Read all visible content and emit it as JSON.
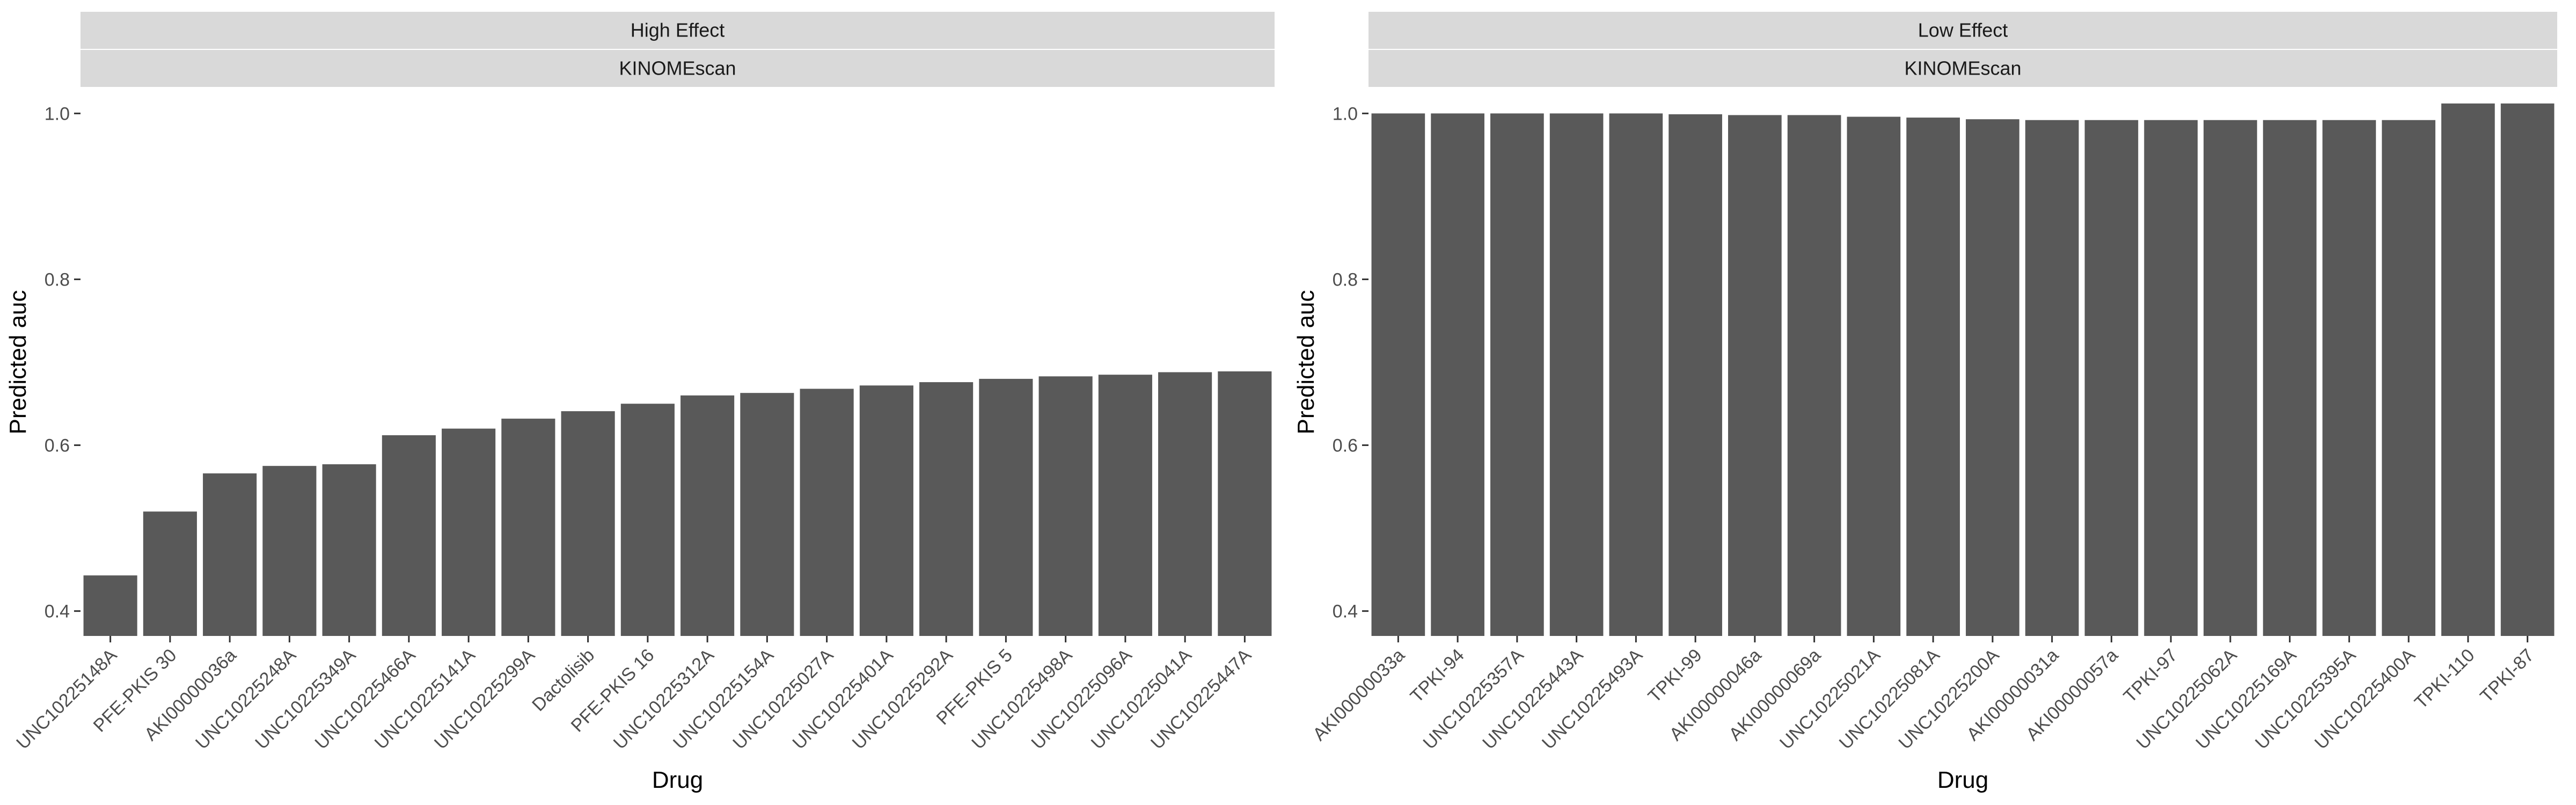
{
  "chart_data": [
    {
      "type": "bar",
      "strip_labels": [
        "High Effect",
        "KINOMEscan"
      ],
      "xlabel": "Drug",
      "ylabel": "Predicted auc",
      "ylim": [
        0.37,
        1.03
      ],
      "yticks": [
        0.4,
        0.6,
        0.8,
        1.0
      ],
      "ytick_labels": [
        "0.4",
        "0.6",
        "0.8",
        "1.0"
      ],
      "grid": false,
      "categories": [
        "UNC10225148A",
        "PFE-PKIS 30",
        "AKI00000036a",
        "UNC10225248A",
        "UNC10225349A",
        "UNC10225466A",
        "UNC10225141A",
        "UNC10225299A",
        "Dactolisib",
        "PFE-PKIS 16",
        "UNC10225312A",
        "UNC10225154A",
        "UNC10225027A",
        "UNC10225401A",
        "UNC10225292A",
        "PFE-PKIS 5",
        "UNC10225498A",
        "UNC10225096A",
        "UNC10225041A",
        "UNC10225447A"
      ],
      "values": [
        0.443,
        0.52,
        0.566,
        0.575,
        0.577,
        0.612,
        0.62,
        0.632,
        0.641,
        0.65,
        0.66,
        0.663,
        0.668,
        0.672,
        0.676,
        0.68,
        0.683,
        0.685,
        0.688,
        0.689
      ]
    },
    {
      "type": "bar",
      "strip_labels": [
        "Low Effect",
        "KINOMEscan"
      ],
      "xlabel": "Drug",
      "ylabel": "Predicted auc",
      "ylim": [
        0.37,
        1.03
      ],
      "yticks": [
        0.4,
        0.6,
        0.8,
        1.0
      ],
      "ytick_labels": [
        "0.4",
        "0.6",
        "0.8",
        "1.0"
      ],
      "grid": false,
      "categories": [
        "AKI00000033a",
        "TPKI-94",
        "UNC10225357A",
        "UNC10225443A",
        "UNC10225493A",
        "TPKI-99",
        "AKI00000046a",
        "AKI00000069a",
        "UNC10225021A",
        "UNC10225081A",
        "UNC10225200A",
        "AKI00000031a",
        "AKI00000057a",
        "TPKI-97",
        "UNC10225062A",
        "UNC10225169A",
        "UNC10225395A",
        "UNC10225400A",
        "TPKI-110",
        "TPKI-87"
      ],
      "values": [
        1.0,
        1.0,
        1.0,
        1.0,
        1.0,
        0.999,
        0.998,
        0.998,
        0.996,
        0.995,
        0.993,
        0.992,
        0.992,
        0.992,
        0.992,
        0.992,
        0.992,
        0.992,
        1.012,
        1.012
      ]
    }
  ]
}
